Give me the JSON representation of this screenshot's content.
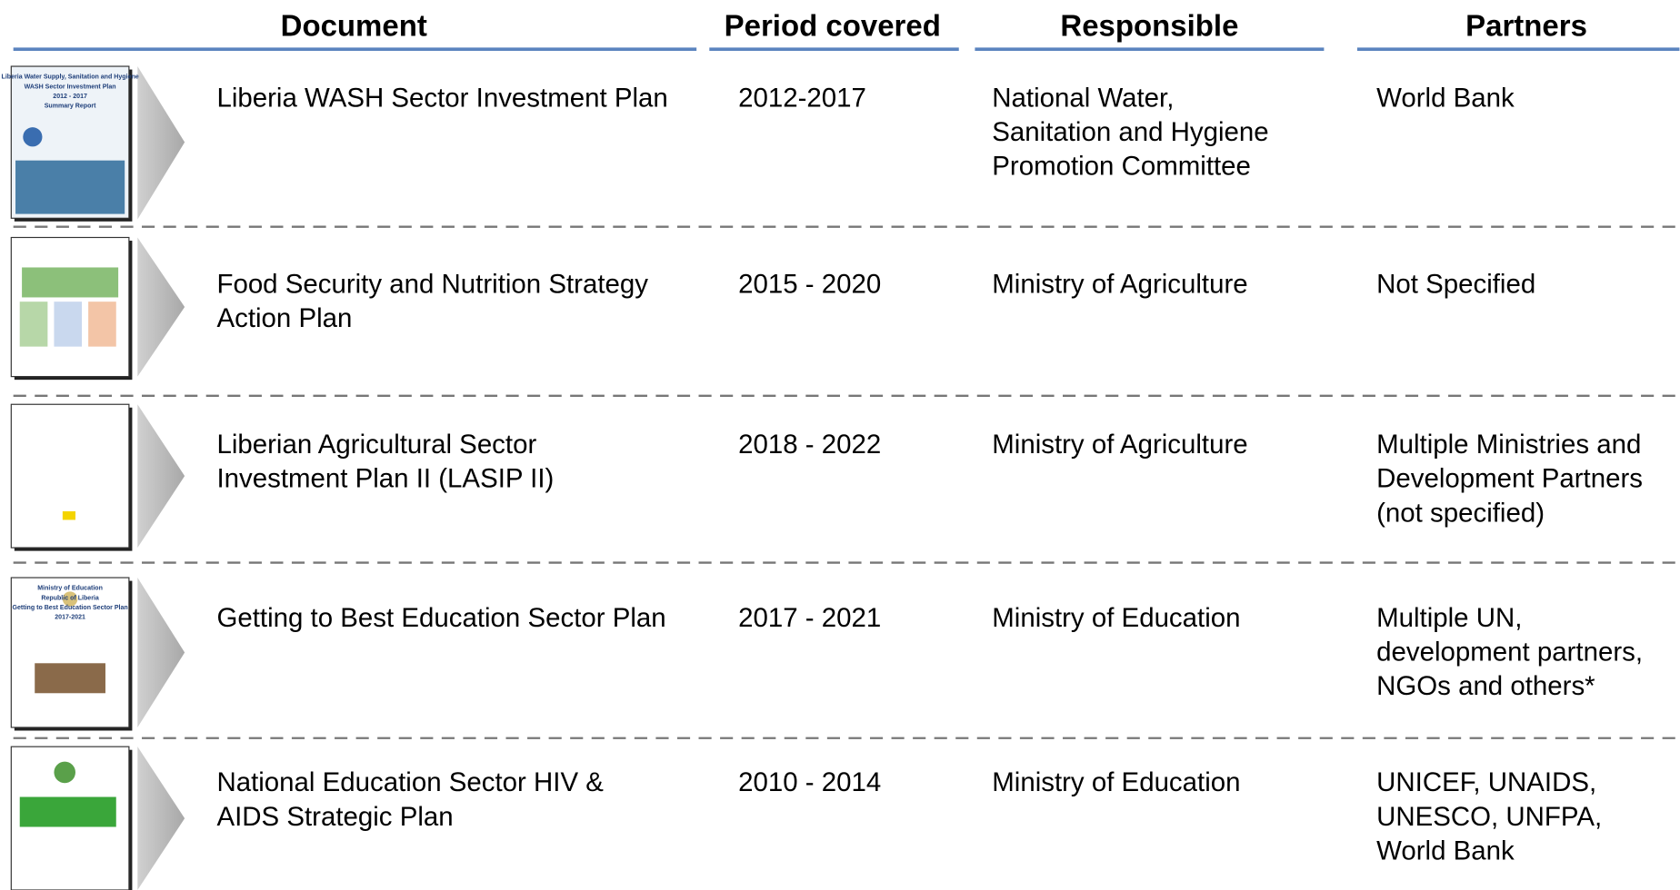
{
  "header": {
    "columns": [
      "Document",
      "Period covered",
      "Responsible",
      "Partners"
    ]
  },
  "rows": [
    {
      "thumbnail": [
        "Liberia Water Supply, Sanitation and Hygiene",
        "WASH Sector Investment Plan",
        "2012 - 2017",
        "Summary Report"
      ],
      "document": [
        "Liberia WASH Sector Investment Plan"
      ],
      "period": "2012-2017",
      "responsible": [
        "National Water,",
        "Sanitation and Hygiene",
        "Promotion Committee"
      ],
      "partners": [
        "World Bank"
      ]
    },
    {
      "document": [
        "Food Security and Nutrition Strategy",
        "Action Plan"
      ],
      "period": "2015 - 2020",
      "responsible": [
        "Ministry of Agriculture"
      ],
      "partners": [
        "Not Specified"
      ]
    },
    {
      "document": [
        "Liberian Agricultural Sector",
        "Investment Plan II (LASIP II)"
      ],
      "period": "2018 - 2022",
      "responsible": [
        "Ministry of Agriculture"
      ],
      "partners": [
        "Multiple Ministries and",
        "Development Partners",
        "(not specified)"
      ]
    },
    {
      "thumbnail": [
        "Ministry of Education",
        "Republic of Liberia",
        "Getting to Best Education Sector Plan",
        "2017-2021"
      ],
      "document": [
        "Getting to Best Education Sector Plan"
      ],
      "period": "2017 - 2021",
      "responsible": [
        "Ministry of Education"
      ],
      "partners": [
        "Multiple UN,",
        "development partners,",
        "NGOs and others*"
      ]
    },
    {
      "document": [
        "National Education Sector HIV &",
        "AIDS Strategic Plan"
      ],
      "period": "2010 - 2014",
      "responsible": [
        "Ministry of Education"
      ],
      "partners": [
        "UNICEF, UNAIDS,",
        "UNESCO, UNFPA,",
        "World Bank"
      ]
    }
  ]
}
